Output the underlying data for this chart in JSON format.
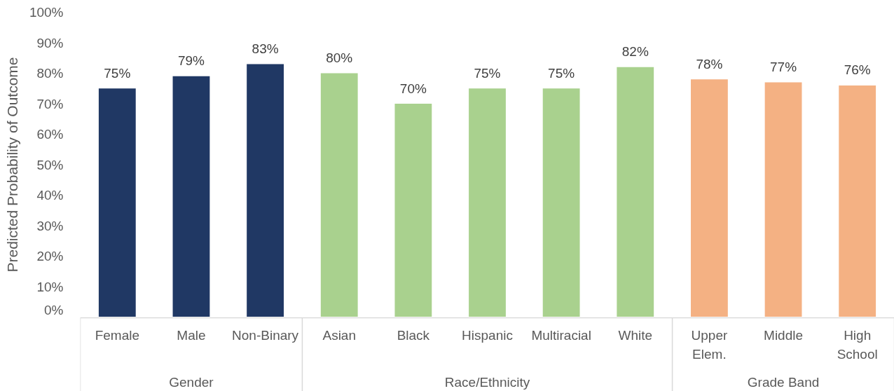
{
  "chart_data": {
    "type": "bar",
    "ylabel": "Predicted Probability of Outcome",
    "categories": [
      "Female",
      "Male",
      "Non-Binary",
      "Asian",
      "Black",
      "Hispanic",
      "Multiracial",
      "White",
      "Upper Elem.",
      "Middle",
      "High School"
    ],
    "series": [
      {
        "color": "#203864",
        "values": [
          75,
          79,
          83,
          null,
          null,
          null,
          null,
          null,
          null,
          null,
          null
        ],
        "value_labels": [
          "75%",
          "79%",
          "83%",
          null,
          null,
          null,
          null,
          null,
          null,
          null,
          null
        ]
      },
      {
        "color": "#a9d18e",
        "values": [
          null,
          null,
          null,
          80,
          70,
          75,
          75,
          82,
          null,
          null,
          null
        ],
        "value_labels": [
          null,
          null,
          null,
          "80%",
          "70%",
          "75%",
          "75%",
          "82%",
          null,
          null,
          null
        ]
      },
      {
        "color": "#f4b183",
        "values": [
          null,
          null,
          null,
          null,
          null,
          null,
          null,
          null,
          78,
          77,
          76
        ],
        "value_labels": [
          null,
          null,
          null,
          null,
          null,
          null,
          null,
          null,
          "78%",
          "77%",
          "76%"
        ]
      }
    ],
    "annotations": [
      "Gender",
      "Race/Ethnicity",
      "Grade Band"
    ],
    "ylim": [
      0,
      100
    ],
    "yticks": [
      {
        "value": 0,
        "label": "0%"
      },
      {
        "value": 10,
        "label": "10%"
      },
      {
        "value": 20,
        "label": "20%"
      },
      {
        "value": 30,
        "label": "30%"
      },
      {
        "value": 40,
        "label": "40%"
      },
      {
        "value": 50,
        "label": "50%"
      },
      {
        "value": 60,
        "label": "60%"
      },
      {
        "value": 70,
        "label": "70%"
      },
      {
        "value": 80,
        "label": "80%"
      },
      {
        "value": 90,
        "label": "90%"
      },
      {
        "value": 100,
        "label": "100%"
      }
    ]
  }
}
